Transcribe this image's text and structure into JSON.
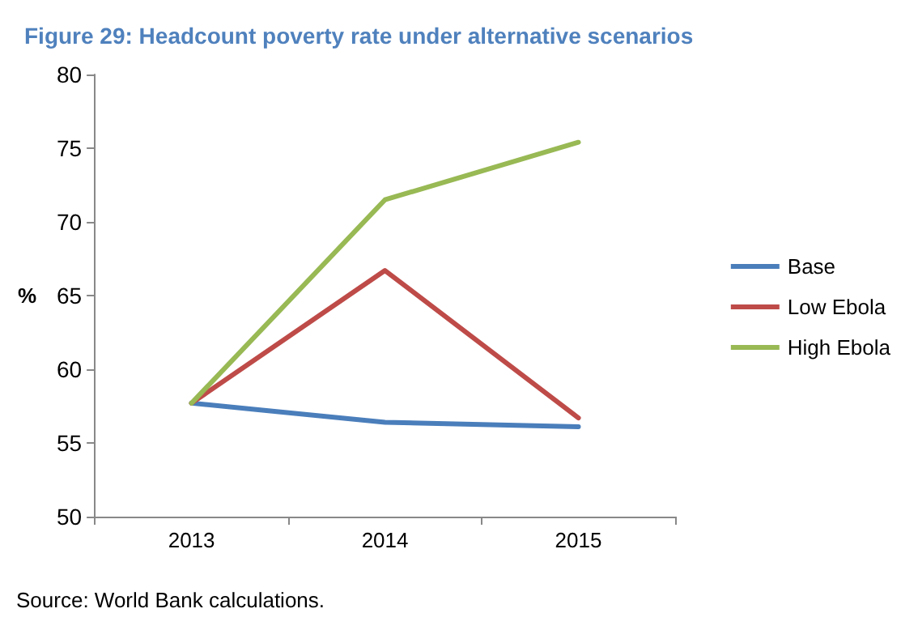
{
  "chart_data": {
    "type": "line",
    "title": "Figure 29: Headcount poverty rate under alternative scenarios",
    "ylabel": "%",
    "categories": [
      "2013",
      "2014",
      "2015"
    ],
    "series": [
      {
        "name": "Base",
        "color": "#4a7ebb",
        "values": [
          57.7,
          56.4,
          56.1
        ]
      },
      {
        "name": "Low Ebola",
        "color": "#be4b48",
        "values": [
          57.7,
          66.7,
          56.7
        ]
      },
      {
        "name": "High Ebola",
        "color": "#98b954",
        "values": [
          57.7,
          71.5,
          75.4
        ]
      }
    ],
    "ylim": [
      50,
      80
    ],
    "yticks": [
      50,
      55,
      60,
      65,
      70,
      75,
      80
    ],
    "grid": false,
    "legend": "right",
    "marker": "none",
    "line_style": "solid",
    "annotations": [
      "Source: World Bank calculations."
    ]
  }
}
